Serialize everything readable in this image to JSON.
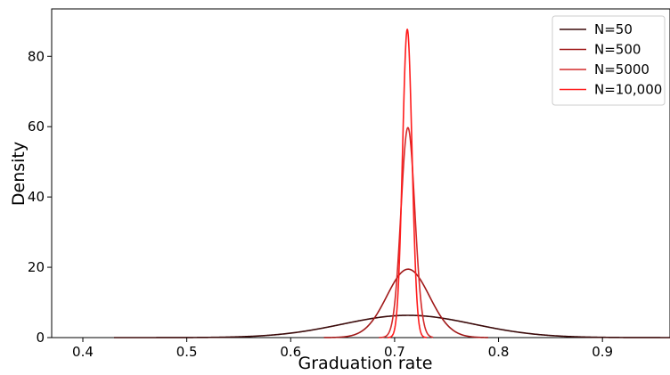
{
  "chart_data": {
    "type": "line",
    "xlabel": "Graduation rate",
    "ylabel": "Density",
    "xlim": [
      0.37,
      0.965
    ],
    "ylim": [
      0,
      93.5
    ],
    "xticks": [
      0.4,
      0.5,
      0.6,
      0.7,
      0.8,
      0.9
    ],
    "yticks": [
      0,
      20,
      40,
      60,
      80
    ],
    "grid": false,
    "legend_position": "top-right",
    "series": [
      {
        "name": "N=50",
        "color": "#3b0a0a",
        "mean": 0.713,
        "sd": 0.063,
        "x_range": [
          0.43,
          0.965
        ]
      },
      {
        "name": "N=500",
        "color": "#a01818",
        "mean": 0.713,
        "sd": 0.0205,
        "x_range": [
          0.632,
          0.79
        ]
      },
      {
        "name": "N=5000",
        "color": "#d42a2a",
        "mean": 0.7128,
        "sd": 0.00668,
        "x_range": [
          0.685,
          0.737
        ]
      },
      {
        "name": "N=10,000",
        "color": "#ff1c1c",
        "mean": 0.7122,
        "sd": 0.00455,
        "x_range": [
          0.693,
          0.731
        ]
      }
    ]
  }
}
